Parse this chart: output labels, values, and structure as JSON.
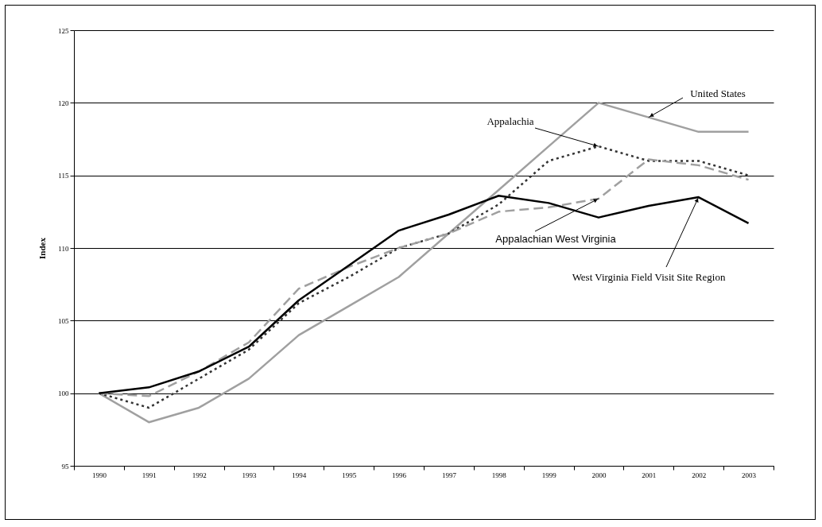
{
  "chart_data": {
    "type": "line",
    "ylabel": "Index",
    "categories": [
      "1990",
      "1991",
      "1992",
      "1993",
      "1994",
      "1995",
      "1996",
      "1997",
      "1998",
      "1999",
      "2000",
      "2001",
      "2002",
      "2003"
    ],
    "series": [
      {
        "color": "#a0a0a0",
        "line_style": "solid",
        "values": [
          100,
          98,
          99,
          101,
          104,
          106,
          108,
          111,
          114,
          117,
          120,
          119,
          118,
          118
        ]
      },
      {
        "color": "#333333",
        "line_style": "dotted",
        "values": [
          100,
          99,
          101,
          103,
          106.2,
          108,
          110,
          111,
          113,
          116,
          117,
          116,
          116,
          115
        ]
      },
      {
        "color": "#a0a0a0",
        "line_style": "dashed",
        "values": [
          100,
          99.8,
          101.5,
          103.5,
          107.2,
          108.7,
          110,
          111,
          112.5,
          112.8,
          113.4,
          116.1,
          115.7,
          114.7
        ]
      },
      {
        "color": "#000000",
        "line_style": "solid",
        "values": [
          100,
          100.4,
          101.5,
          103.2,
          106.4,
          108.8,
          111.2,
          112.3,
          113.6,
          113.1,
          112.1,
          112.9,
          113.5,
          111.7
        ]
      }
    ],
    "annotations": [
      {
        "text": "United States",
        "x": "2001",
        "y": 119
      },
      {
        "text": "Appalachia",
        "x": "2000",
        "y": 117
      },
      {
        "text": "Appalachian West Virginia",
        "x": "2000",
        "y": 113.4
      },
      {
        "text": "West Virginia Field Visit Site Region",
        "x": "2002",
        "y": 113.5
      }
    ],
    "ylim": [
      95,
      125
    ],
    "yticks": [
      95,
      100,
      105,
      110,
      115,
      120,
      125
    ],
    "grid": "y",
    "marker": "none"
  }
}
